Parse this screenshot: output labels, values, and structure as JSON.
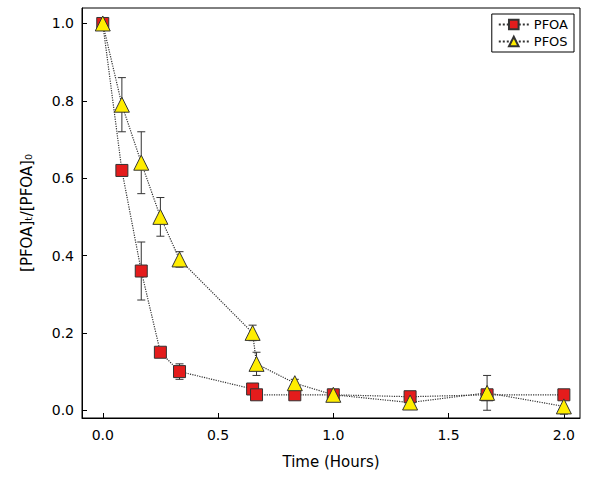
{
  "chart_data": {
    "type": "line",
    "x_label": "Time (Hours)",
    "y_label": "[PFOA]ₜ/[PFOA]₀",
    "xlim": [
      -0.09,
      2.07
    ],
    "xticks": [
      {
        "value": 0,
        "label": "0.0"
      },
      0.5,
      {
        "value": 1,
        "label": "1.0"
      },
      1.5,
      {
        "value": 2,
        "label": "2.0"
      }
    ],
    "ylim": [
      -0.02,
      1.04
    ],
    "yticks": [
      {
        "value": 0,
        "label": "0.0"
      },
      0.2,
      0.4,
      0.6,
      0.8,
      {
        "value": 1,
        "label": "1.0"
      }
    ],
    "grid": false,
    "legend": "upper right",
    "x": [
      0,
      0.083,
      0.167,
      0.25,
      0.333,
      0.65,
      0.667,
      0.833,
      1.0,
      1.333,
      1.667,
      2.0
    ],
    "series": [
      {
        "name": "PFOA",
        "color": "#e41c1c",
        "marker": "square",
        "line_style": "dotted",
        "values": [
          1.0,
          0.62,
          0.36,
          0.15,
          0.1,
          0.055,
          0.04,
          0.04,
          0.04,
          0.035,
          0.04,
          0.04
        ],
        "errors": [
          0,
          0,
          0.075,
          0,
          0.02,
          0.01,
          0.01,
          0.01,
          0.01,
          0.01,
          0.01,
          0.01
        ]
      },
      {
        "name": "PFOS",
        "color": "#ffed00",
        "marker": "triangle",
        "line_style": "dotted",
        "values": [
          1.0,
          0.79,
          0.64,
          0.5,
          0.39,
          0.2,
          0.12,
          0.07,
          0.04,
          0.02,
          0.045,
          0.01
        ],
        "errors": [
          0,
          0.07,
          0.08,
          0.05,
          0.02,
          0.02,
          0.03,
          0.01,
          0.01,
          0.01,
          0.045,
          0.02
        ]
      }
    ]
  }
}
